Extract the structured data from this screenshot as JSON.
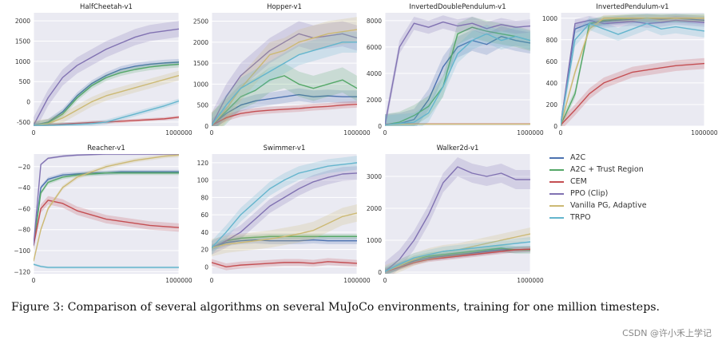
{
  "chart_data": [
    {
      "type": "line",
      "title": "HalfCheetah-v1",
      "xlim": [
        0,
        1000000
      ],
      "ylim": [
        -600,
        2200
      ],
      "xticks": [
        0,
        1000000
      ],
      "xtick_labels": [
        "0",
        "1000000"
      ],
      "yticks": [
        -500,
        0,
        500,
        1000,
        1500,
        2000
      ],
      "ytick_labels": [
        "-500",
        "0",
        "500",
        "1000",
        "1500",
        "2000"
      ],
      "x": [
        0,
        100000,
        200000,
        300000,
        400000,
        500000,
        600000,
        700000,
        800000,
        900000,
        1000000
      ],
      "series": [
        {
          "name": "A2C",
          "values": [
            -580,
            -500,
            -250,
            150,
            450,
            650,
            800,
            880,
            930,
            960,
            980
          ],
          "band": 80
        },
        {
          "name": "A2C + Trust Region",
          "values": [
            -580,
            -520,
            -300,
            100,
            400,
            600,
            720,
            800,
            860,
            900,
            930
          ],
          "band": 80
        },
        {
          "name": "CEM",
          "values": [
            -580,
            -570,
            -550,
            -530,
            -510,
            -500,
            -480,
            -460,
            -440,
            -420,
            -380
          ],
          "band": 40
        },
        {
          "name": "PPO (Clip)",
          "values": [
            -580,
            100,
            600,
            900,
            1100,
            1300,
            1450,
            1600,
            1700,
            1750,
            1800
          ],
          "band": 200
        },
        {
          "name": "Vanilla PG, Adaptive",
          "values": [
            -580,
            -540,
            -400,
            -200,
            0,
            150,
            250,
            350,
            450,
            550,
            650
          ],
          "band": 120
        },
        {
          "name": "TRPO",
          "values": [
            -580,
            -580,
            -570,
            -560,
            -540,
            -500,
            -400,
            -300,
            -200,
            -100,
            20
          ],
          "band": 60
        }
      ]
    },
    {
      "type": "line",
      "title": "Hopper-v1",
      "xlim": [
        0,
        1000000
      ],
      "ylim": [
        0,
        2700
      ],
      "xticks": [
        0,
        1000000
      ],
      "xtick_labels": [
        "0",
        "1000000"
      ],
      "yticks": [
        0,
        500,
        1000,
        1500,
        2000,
        2500
      ],
      "ytick_labels": [
        "0",
        "500",
        "1000",
        "1500",
        "2000",
        "2500"
      ],
      "x": [
        0,
        100000,
        200000,
        300000,
        400000,
        500000,
        600000,
        700000,
        800000,
        900000,
        1000000
      ],
      "series": [
        {
          "name": "A2C",
          "values": [
            20,
            300,
            500,
            600,
            650,
            700,
            750,
            700,
            720,
            700,
            700
          ],
          "band": 150
        },
        {
          "name": "A2C + Trust Region",
          "values": [
            20,
            350,
            700,
            850,
            1100,
            1200,
            1000,
            900,
            1000,
            1100,
            900
          ],
          "band": 300
        },
        {
          "name": "CEM",
          "values": [
            20,
            200,
            300,
            350,
            380,
            400,
            420,
            450,
            470,
            500,
            520
          ],
          "band": 80
        },
        {
          "name": "PPO (Clip)",
          "values": [
            20,
            700,
            1200,
            1500,
            1800,
            2000,
            2200,
            2100,
            2150,
            2200,
            2100
          ],
          "band": 300
        },
        {
          "name": "Vanilla PG, Adaptive",
          "values": [
            20,
            400,
            900,
            1300,
            1700,
            1800,
            2000,
            2100,
            2200,
            2250,
            2300
          ],
          "band": 300
        },
        {
          "name": "TRPO",
          "values": [
            20,
            500,
            900,
            1100,
            1300,
            1500,
            1700,
            1800,
            1900,
            2000,
            2000
          ],
          "band": 250
        }
      ]
    },
    {
      "type": "line",
      "title": "InvertedDoublePendulum-v1",
      "xlim": [
        0,
        1000000
      ],
      "ylim": [
        0,
        8600
      ],
      "xticks": [
        0,
        1000000
      ],
      "xtick_labels": [
        "0",
        "1000000"
      ],
      "yticks": [
        0,
        2000,
        4000,
        6000,
        8000
      ],
      "ytick_labels": [
        "0",
        "2000",
        "4000",
        "6000",
        "8000"
      ],
      "x": [
        0,
        100000,
        200000,
        300000,
        400000,
        500000,
        600000,
        700000,
        800000,
        900000,
        1000000
      ],
      "series": [
        {
          "name": "A2C",
          "values": [
            100,
            200,
            500,
            2000,
            4500,
            6000,
            6500,
            6200,
            6800,
            6500,
            6300
          ],
          "band": 800
        },
        {
          "name": "A2C + Trust Region",
          "values": [
            100,
            300,
            800,
            1500,
            3000,
            7000,
            7500,
            7200,
            7000,
            6800,
            6500
          ],
          "band": 800
        },
        {
          "name": "CEM",
          "values": [
            150,
            160,
            160,
            160,
            160,
            160,
            160,
            160,
            160,
            160,
            160
          ],
          "band": 20
        },
        {
          "name": "PPO (Clip)",
          "values": [
            100,
            6000,
            7800,
            7500,
            7900,
            7600,
            7800,
            7400,
            7700,
            7500,
            7600
          ],
          "band": 500
        },
        {
          "name": "Vanilla PG, Adaptive",
          "values": [
            100,
            150,
            150,
            150,
            150,
            150,
            150,
            150,
            150,
            150,
            150
          ],
          "band": 20
        },
        {
          "name": "TRPO",
          "values": [
            100,
            200,
            300,
            1000,
            3000,
            5500,
            6500,
            7000,
            6500,
            6800,
            6500
          ],
          "band": 700
        }
      ]
    },
    {
      "type": "line",
      "title": "InvertedPendulum-v1",
      "xlim": [
        0,
        1000000
      ],
      "ylim": [
        0,
        1050
      ],
      "xticks": [
        0,
        1000000
      ],
      "xtick_labels": [
        "0",
        "1000000"
      ],
      "yticks": [
        0,
        200,
        400,
        600,
        800,
        1000
      ],
      "ytick_labels": [
        "0",
        "200",
        "400",
        "600",
        "800",
        "1000"
      ],
      "x": [
        0,
        100000,
        200000,
        300000,
        400000,
        500000,
        600000,
        700000,
        800000,
        900000,
        1000000
      ],
      "series": [
        {
          "name": "A2C",
          "values": [
            10,
            900,
            950,
            970,
            980,
            990,
            1000,
            990,
            1000,
            990,
            980
          ],
          "band": 40
        },
        {
          "name": "A2C + Trust Region",
          "values": [
            10,
            300,
            950,
            980,
            990,
            1000,
            1000,
            1000,
            1000,
            1000,
            1000
          ],
          "band": 40
        },
        {
          "name": "CEM",
          "values": [
            10,
            150,
            300,
            400,
            450,
            500,
            520,
            540,
            560,
            570,
            580
          ],
          "band": 50
        },
        {
          "name": "PPO (Clip)",
          "values": [
            10,
            950,
            980,
            950,
            960,
            970,
            950,
            960,
            980,
            970,
            960
          ],
          "band": 40
        },
        {
          "name": "Vanilla PG, Adaptive",
          "values": [
            10,
            500,
            900,
            1000,
            1000,
            1000,
            1000,
            1000,
            1000,
            1000,
            1000
          ],
          "band": 30
        },
        {
          "name": "TRPO",
          "values": [
            10,
            800,
            950,
            900,
            850,
            900,
            950,
            900,
            920,
            900,
            880
          ],
          "band": 60
        }
      ]
    },
    {
      "type": "line",
      "title": "Reacher-v1",
      "xlim": [
        0,
        1000000
      ],
      "ylim": [
        -122,
        -8
      ],
      "xticks": [
        0,
        1000000
      ],
      "xtick_labels": [
        "0",
        "1000000"
      ],
      "yticks": [
        -120,
        -100,
        -80,
        -60,
        -40,
        -20
      ],
      "ytick_labels": [
        "−120",
        "−100",
        "−80",
        "−60",
        "−40",
        "−20"
      ],
      "x": [
        0,
        50000,
        100000,
        200000,
        300000,
        400000,
        500000,
        600000,
        700000,
        800000,
        900000,
        1000000
      ],
      "series": [
        {
          "name": "A2C",
          "values": [
            -95,
            -40,
            -32,
            -28,
            -27,
            -26,
            -26,
            -25,
            -25,
            -25,
            -25,
            -25
          ],
          "band": 2
        },
        {
          "name": "A2C + Trust Region",
          "values": [
            -95,
            -45,
            -35,
            -30,
            -28,
            -27,
            -26,
            -26,
            -26,
            -26,
            -26,
            -26
          ],
          "band": 2
        },
        {
          "name": "CEM",
          "values": [
            -95,
            -60,
            -52,
            -55,
            -62,
            -66,
            -70,
            -72,
            -74,
            -76,
            -77,
            -78
          ],
          "band": 4
        },
        {
          "name": "PPO (Clip)",
          "values": [
            -95,
            -18,
            -12,
            -10,
            -9,
            -8.5,
            -8,
            -8,
            -8,
            -8,
            -8,
            -8
          ],
          "band": 1
        },
        {
          "name": "Vanilla PG, Adaptive",
          "values": [
            -110,
            -80,
            -60,
            -40,
            -30,
            -25,
            -20,
            -17,
            -14,
            -12,
            -10,
            -9
          ],
          "band": 2
        },
        {
          "name": "TRPO",
          "values": [
            -113,
            -115,
            -116,
            -116,
            -116,
            -116,
            -116,
            -116,
            -116,
            -116,
            -116,
            -116
          ],
          "band": 1
        }
      ]
    },
    {
      "type": "line",
      "title": "Swimmer-v1",
      "xlim": [
        0,
        1000000
      ],
      "ylim": [
        -8,
        130
      ],
      "xticks": [
        0,
        1000000
      ],
      "xtick_labels": [
        "0",
        "1000000"
      ],
      "yticks": [
        0,
        20,
        40,
        60,
        80,
        100,
        120
      ],
      "ytick_labels": [
        "0",
        "20",
        "40",
        "60",
        "80",
        "100",
        "120"
      ],
      "x": [
        0,
        100000,
        200000,
        300000,
        400000,
        500000,
        600000,
        700000,
        800000,
        900000,
        1000000
      ],
      "series": [
        {
          "name": "A2C",
          "values": [
            22,
            28,
            30,
            31,
            30,
            30,
            30,
            31,
            30,
            30,
            30
          ],
          "band": 4
        },
        {
          "name": "A2C + Trust Region",
          "values": [
            22,
            30,
            33,
            34,
            35,
            35,
            35,
            35,
            35,
            35,
            35
          ],
          "band": 3
        },
        {
          "name": "CEM",
          "values": [
            5,
            0,
            2,
            3,
            4,
            5,
            5,
            4,
            6,
            5,
            4
          ],
          "band": 4
        },
        {
          "name": "PPO (Clip)",
          "values": [
            22,
            30,
            40,
            55,
            70,
            80,
            90,
            98,
            103,
            107,
            108
          ],
          "band": 8
        },
        {
          "name": "Vanilla PG, Adaptive",
          "values": [
            22,
            26,
            28,
            30,
            32,
            35,
            38,
            42,
            50,
            58,
            62
          ],
          "band": 10
        },
        {
          "name": "TRPO",
          "values": [
            22,
            40,
            60,
            75,
            90,
            100,
            108,
            112,
            116,
            118,
            120
          ],
          "band": 8
        }
      ]
    },
    {
      "type": "line",
      "title": "Walker2d-v1",
      "xlim": [
        0,
        1000000
      ],
      "ylim": [
        -50,
        3700
      ],
      "xticks": [
        0,
        1000000
      ],
      "xtick_labels": [
        "0",
        "1000000"
      ],
      "yticks": [
        0,
        1000,
        2000,
        3000
      ],
      "ytick_labels": [
        "0",
        "1000",
        "2000",
        "3000"
      ],
      "x": [
        0,
        100000,
        200000,
        300000,
        400000,
        500000,
        600000,
        700000,
        800000,
        900000,
        1000000
      ],
      "series": [
        {
          "name": "A2C",
          "values": [
            20,
            200,
            350,
            450,
            500,
            550,
            600,
            650,
            700,
            700,
            720
          ],
          "band": 100
        },
        {
          "name": "A2C + Trust Region",
          "values": [
            20,
            200,
            400,
            500,
            550,
            600,
            650,
            700,
            750,
            700,
            700
          ],
          "band": 120
        },
        {
          "name": "CEM",
          "values": [
            20,
            150,
            300,
            400,
            450,
            500,
            550,
            600,
            650,
            700,
            720
          ],
          "band": 80
        },
        {
          "name": "PPO (Clip)",
          "values": [
            20,
            400,
            1000,
            1800,
            2800,
            3300,
            3100,
            3000,
            3100,
            2900,
            2900
          ],
          "band": 300
        },
        {
          "name": "Vanilla PG, Adaptive",
          "values": [
            20,
            200,
            400,
            550,
            650,
            700,
            800,
            900,
            1000,
            1100,
            1200
          ],
          "band": 200
        },
        {
          "name": "TRPO",
          "values": [
            20,
            250,
            450,
            550,
            650,
            700,
            750,
            800,
            850,
            900,
            950
          ],
          "band": 150
        }
      ]
    }
  ],
  "legend": [
    {
      "name": "A2C",
      "color": "#4c72b0"
    },
    {
      "name": "A2C + Trust Region",
      "color": "#55a868"
    },
    {
      "name": "CEM",
      "color": "#c44e52"
    },
    {
      "name": "PPO (Clip)",
      "color": "#8172b2"
    },
    {
      "name": "Vanilla PG, Adaptive",
      "color": "#ccb974"
    },
    {
      "name": "TRPO",
      "color": "#64b5cd"
    }
  ],
  "caption": "Figure 3:  Comparison of several algorithms on several MuJoCo environments, training for one million timesteps.",
  "watermark": "CSDN @许小禾上学记"
}
